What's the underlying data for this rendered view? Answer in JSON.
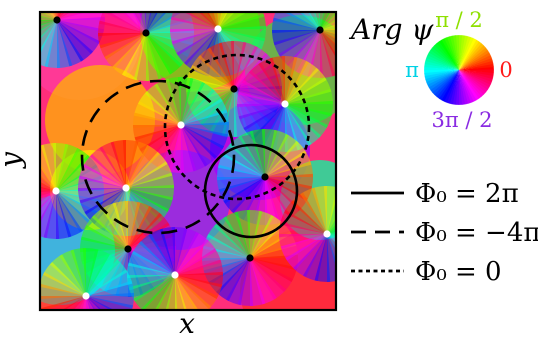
{
  "plot": {
    "xlabel": "x",
    "ylabel": "y"
  },
  "colorwheel": {
    "title": "Arg ψ",
    "labels": {
      "top": "π / 2",
      "left": "π",
      "right": "0",
      "bottom": "3π / 2"
    },
    "label_colors": {
      "top": "#8ee000",
      "left": "#00d2e6",
      "right": "#ff1a1a",
      "bottom": "#8a2be2"
    }
  },
  "legend": {
    "entries": [
      {
        "line_style": "solid",
        "label": "Φ₀ = 2π"
      },
      {
        "line_style": "dashed",
        "label": "Φ₀ = −4π"
      },
      {
        "line_style": "dotted",
        "label": "Φ₀ = 0"
      }
    ]
  },
  "vortex_markers": {
    "black": "positive winding",
    "white": "negative winding"
  },
  "colors": {
    "frame": "#000000",
    "marker_black": "#000000",
    "marker_white": "#ffffff"
  }
}
